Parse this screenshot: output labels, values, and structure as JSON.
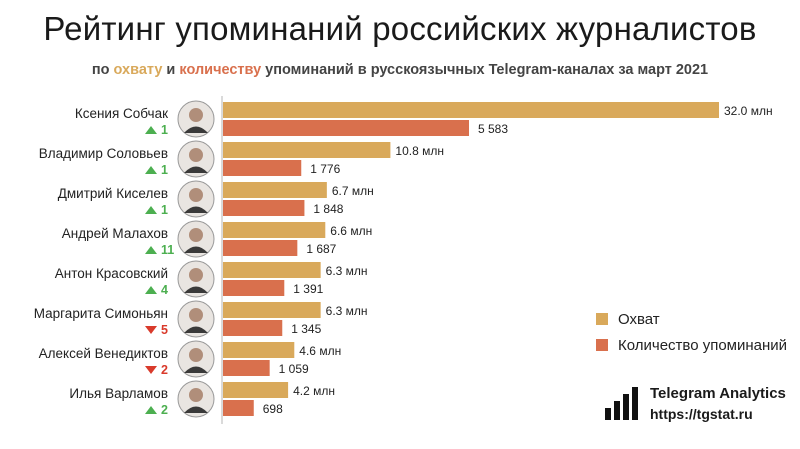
{
  "title": "Рейтинг упоминаний российских журналистов",
  "subtitle": {
    "prefix": "по ",
    "reach_word": "охвату",
    "mid": " и ",
    "count_word": "количеству",
    "suffix": " упоминаний в русскоязычных Telegram-каналах за март 2021"
  },
  "colors": {
    "reach": "#d9a95b",
    "count": "#d9704d",
    "rank_up": "#4caf50",
    "rank_down": "#d93a2b",
    "axis": "#b5b5b5"
  },
  "legend": {
    "reach": "Охват",
    "count": "Количество упоминаний"
  },
  "brand": {
    "name": "Telegram Analytics",
    "url": "https://tgstat.ru",
    "icon": "bar-chart-logo-icon"
  },
  "chart_data": {
    "type": "bar",
    "orientation": "horizontal",
    "categories": [
      "Ксения Собчак",
      "Владимир Соловьев",
      "Дмитрий Киселев",
      "Андрей Малахов",
      "Антон Красовский",
      "Маргарита Симоньян",
      "Алексей Венедиктов",
      "Илья Варламов"
    ],
    "rank_change": [
      {
        "direction": "up",
        "value": "1"
      },
      {
        "direction": "up",
        "value": "1"
      },
      {
        "direction": "up",
        "value": "1"
      },
      {
        "direction": "up",
        "value": "11"
      },
      {
        "direction": "up",
        "value": "4"
      },
      {
        "direction": "down",
        "value": "5"
      },
      {
        "direction": "down",
        "value": "2"
      },
      {
        "direction": "up",
        "value": "2"
      }
    ],
    "series": [
      {
        "name": "Охват",
        "values": [
          32.0,
          10.8,
          6.7,
          6.6,
          6.3,
          6.3,
          4.6,
          4.2
        ],
        "labels": [
          "32.0 млн",
          "10.8 млн",
          "6.7 млн",
          "6.6 млн",
          "6.3 млн",
          "6.3 млн",
          "4.6 млн",
          "4.2 млн"
        ]
      },
      {
        "name": "Количество упоминаний",
        "values": [
          5583,
          1776,
          1848,
          1687,
          1391,
          1345,
          1059,
          698
        ],
        "labels": [
          "5 583",
          "1 776",
          "1 848",
          "1 687",
          "1 391",
          "1 345",
          "1 059",
          "698"
        ]
      }
    ],
    "legend_position": "right",
    "grid": false
  }
}
